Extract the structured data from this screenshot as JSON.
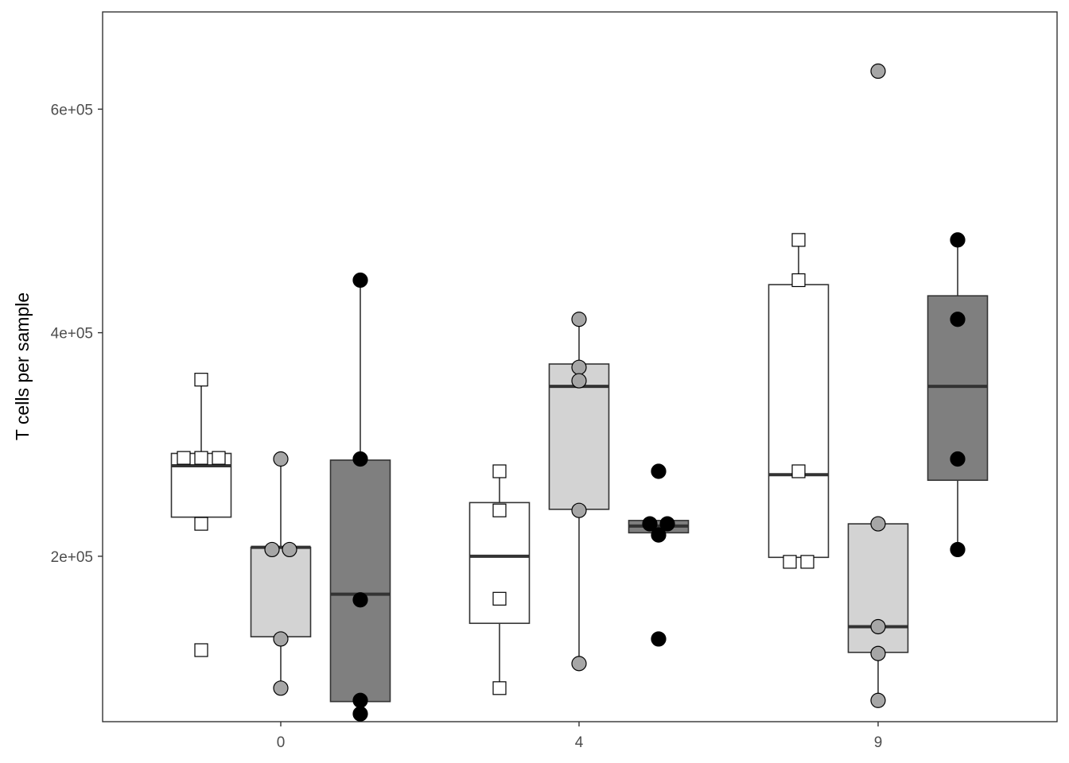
{
  "chart_data": {
    "type": "box",
    "title": "",
    "xlabel": "",
    "ylabel": "T cells per sample",
    "x_ticks": [
      "0",
      "4",
      "9"
    ],
    "y_ticks": [
      {
        "value": 200000,
        "label": "2e+05"
      },
      {
        "value": 400000,
        "label": "4e+05"
      },
      {
        "value": 600000,
        "label": "6e+05"
      }
    ],
    "ylim": [
      52000,
      687000
    ],
    "legend": "none",
    "grid": false,
    "groups": [
      {
        "x": "0",
        "boxes": [
          {
            "fill": "#ffffff",
            "marker": "square",
            "marker_fill": "#ffffff",
            "q1": 235000,
            "median": 281000,
            "q3": 292000,
            "whisker_low": 235000,
            "whisker_high": 358000,
            "points": [
              358000,
              288000,
              288000,
              288000,
              229000,
              116000
            ]
          },
          {
            "fill": "#d3d3d3",
            "marker": "circle",
            "marker_fill": "#a6a6a6",
            "q1": 128000,
            "median": 208000,
            "q3": 208000,
            "whisker_low": 82000,
            "whisker_high": 287000,
            "points": [
              287000,
              206000,
              206000,
              126000,
              82000
            ]
          },
          {
            "fill": "#7f7f7f",
            "marker": "circle",
            "marker_fill": "#000000",
            "q1": 70000,
            "median": 166000,
            "q3": 286000,
            "whisker_low": 70000,
            "whisker_high": 447000,
            "points": [
              447000,
              287000,
              161000,
              71000,
              59000
            ]
          }
        ]
      },
      {
        "x": "4",
        "boxes": [
          {
            "fill": "#ffffff",
            "marker": "square",
            "marker_fill": "#ffffff",
            "q1": 140000,
            "median": 200000,
            "q3": 248000,
            "whisker_low": 82000,
            "whisker_high": 276000,
            "points": [
              276000,
              241000,
              162000,
              82000
            ]
          },
          {
            "fill": "#d3d3d3",
            "marker": "circle",
            "marker_fill": "#a6a6a6",
            "q1": 242000,
            "median": 352000,
            "q3": 372000,
            "whisker_low": 104000,
            "whisker_high": 412000,
            "points": [
              412000,
              369000,
              357000,
              241000,
              104000
            ]
          },
          {
            "fill": "#7f7f7f",
            "marker": "circle",
            "marker_fill": "#000000",
            "q1": 221000,
            "median": 227000,
            "q3": 232000,
            "whisker_low": 221000,
            "whisker_high": 232000,
            "points": [
              276000,
              229000,
              229000,
              219000,
              126000
            ]
          }
        ]
      },
      {
        "x": "9",
        "boxes": [
          {
            "fill": "#ffffff",
            "marker": "square",
            "marker_fill": "#ffffff",
            "q1": 199000,
            "median": 273000,
            "q3": 443000,
            "whisker_low": 199000,
            "whisker_high": 483000,
            "points": [
              483000,
              447000,
              276000,
              195000,
              195000
            ]
          },
          {
            "fill": "#d3d3d3",
            "marker": "circle",
            "marker_fill": "#a6a6a6",
            "q1": 114000,
            "median": 137000,
            "q3": 229000,
            "whisker_low": 71000,
            "whisker_high": 229000,
            "points": [
              634000,
              229000,
              137000,
              113000,
              71000
            ]
          },
          {
            "fill": "#7f7f7f",
            "marker": "circle",
            "marker_fill": "#000000",
            "q1": 268000,
            "median": 352000,
            "q3": 433000,
            "whisker_low": 206000,
            "whisker_high": 483000,
            "points": [
              483000,
              412000,
              287000,
              206000
            ]
          }
        ]
      }
    ]
  }
}
